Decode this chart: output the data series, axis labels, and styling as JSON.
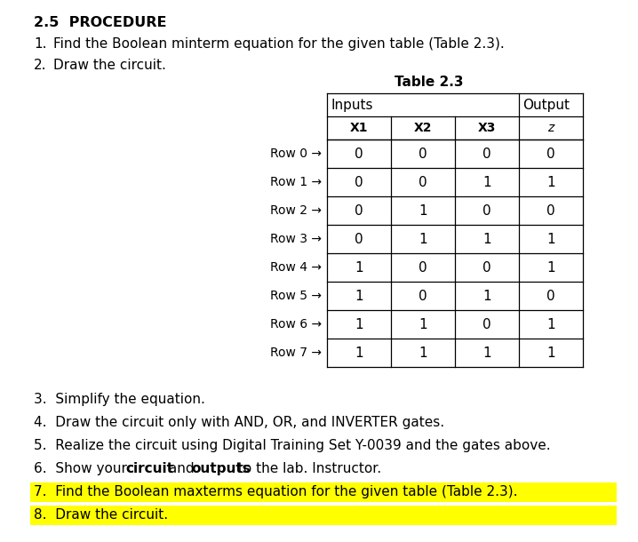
{
  "title": "2.5  PROCEDURE",
  "item1_num": "1.",
  "item1_text": "Find the Boolean minterm equation for the given table (Table 2.3).",
  "item2_num": "2.",
  "item2_text": "Draw the circuit.",
  "table_title": "Table 2.3",
  "col_headers": [
    "x1",
    "x2",
    "x3",
    "z"
  ],
  "col_headers_display": [
    "X1",
    "X2",
    "X3",
    "z"
  ],
  "table_rows": [
    [
      0,
      0,
      0,
      0
    ],
    [
      0,
      0,
      1,
      1
    ],
    [
      0,
      1,
      0,
      0
    ],
    [
      0,
      1,
      1,
      1
    ],
    [
      1,
      0,
      0,
      1
    ],
    [
      1,
      0,
      1,
      0
    ],
    [
      1,
      1,
      0,
      1
    ],
    [
      1,
      1,
      1,
      1
    ]
  ],
  "row_labels": [
    "Row 0",
    "Row 1",
    "Row 2",
    "Row 3",
    "Row 4",
    "Row 5",
    "Row 6",
    "Row 7"
  ],
  "item3": "3.  Simplify the equation.",
  "item4": "4.  Draw the circuit only with AND, OR, and INVERTER gates.",
  "item5": "5.  Realize the circuit using Digital Training Set Y-0039 and the gates above.",
  "item6_pre": "6.  Show your ",
  "item6_bold1": "circuit",
  "item6_mid": " and ",
  "item6_bold2": "outputs",
  "item6_post": " to the lab. Instructor.",
  "item7": "7.  Find the Boolean maxterms equation for the given table (Table 2.3).",
  "item8": "8.  Draw the circuit.",
  "highlight_color": "#FFFF00",
  "bg_color": "#FFFFFF",
  "font_family": "DejaVu Sans",
  "fs_title": 11.5,
  "fs_body": 11,
  "fs_table": 11
}
